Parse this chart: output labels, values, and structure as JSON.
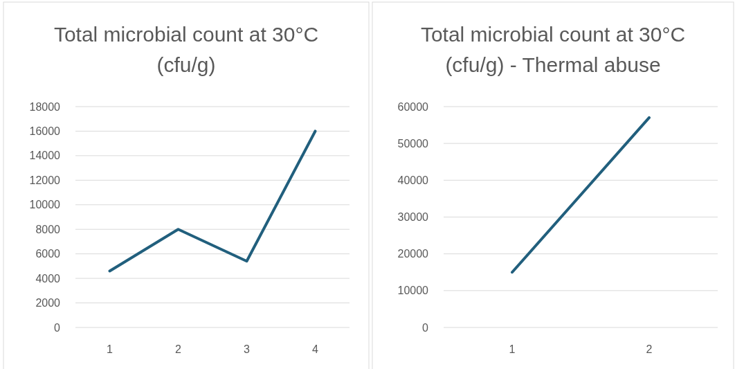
{
  "chart_data": [
    {
      "type": "line",
      "title": "Total microbial count at 30°C (cfu/g)",
      "categories": [
        "1",
        "2",
        "3",
        "4"
      ],
      "series": [
        {
          "color": "#215f7d",
          "values": [
            4600,
            8000,
            5400,
            16000
          ]
        }
      ],
      "ylim": [
        0,
        18000
      ],
      "yticks": [
        0,
        2000,
        4000,
        6000,
        8000,
        10000,
        12000,
        14000,
        16000,
        18000
      ],
      "grid": "y"
    },
    {
      "type": "line",
      "title": "Total microbial count at 30°C (cfu/g) - Thermal abuse",
      "categories": [
        "1",
        "2"
      ],
      "series": [
        {
          "color": "#215f7d",
          "values": [
            15000,
            57000
          ]
        }
      ],
      "ylim": [
        0,
        60000
      ],
      "yticks": [
        0,
        10000,
        20000,
        30000,
        40000,
        50000,
        60000
      ],
      "grid": "y"
    }
  ]
}
